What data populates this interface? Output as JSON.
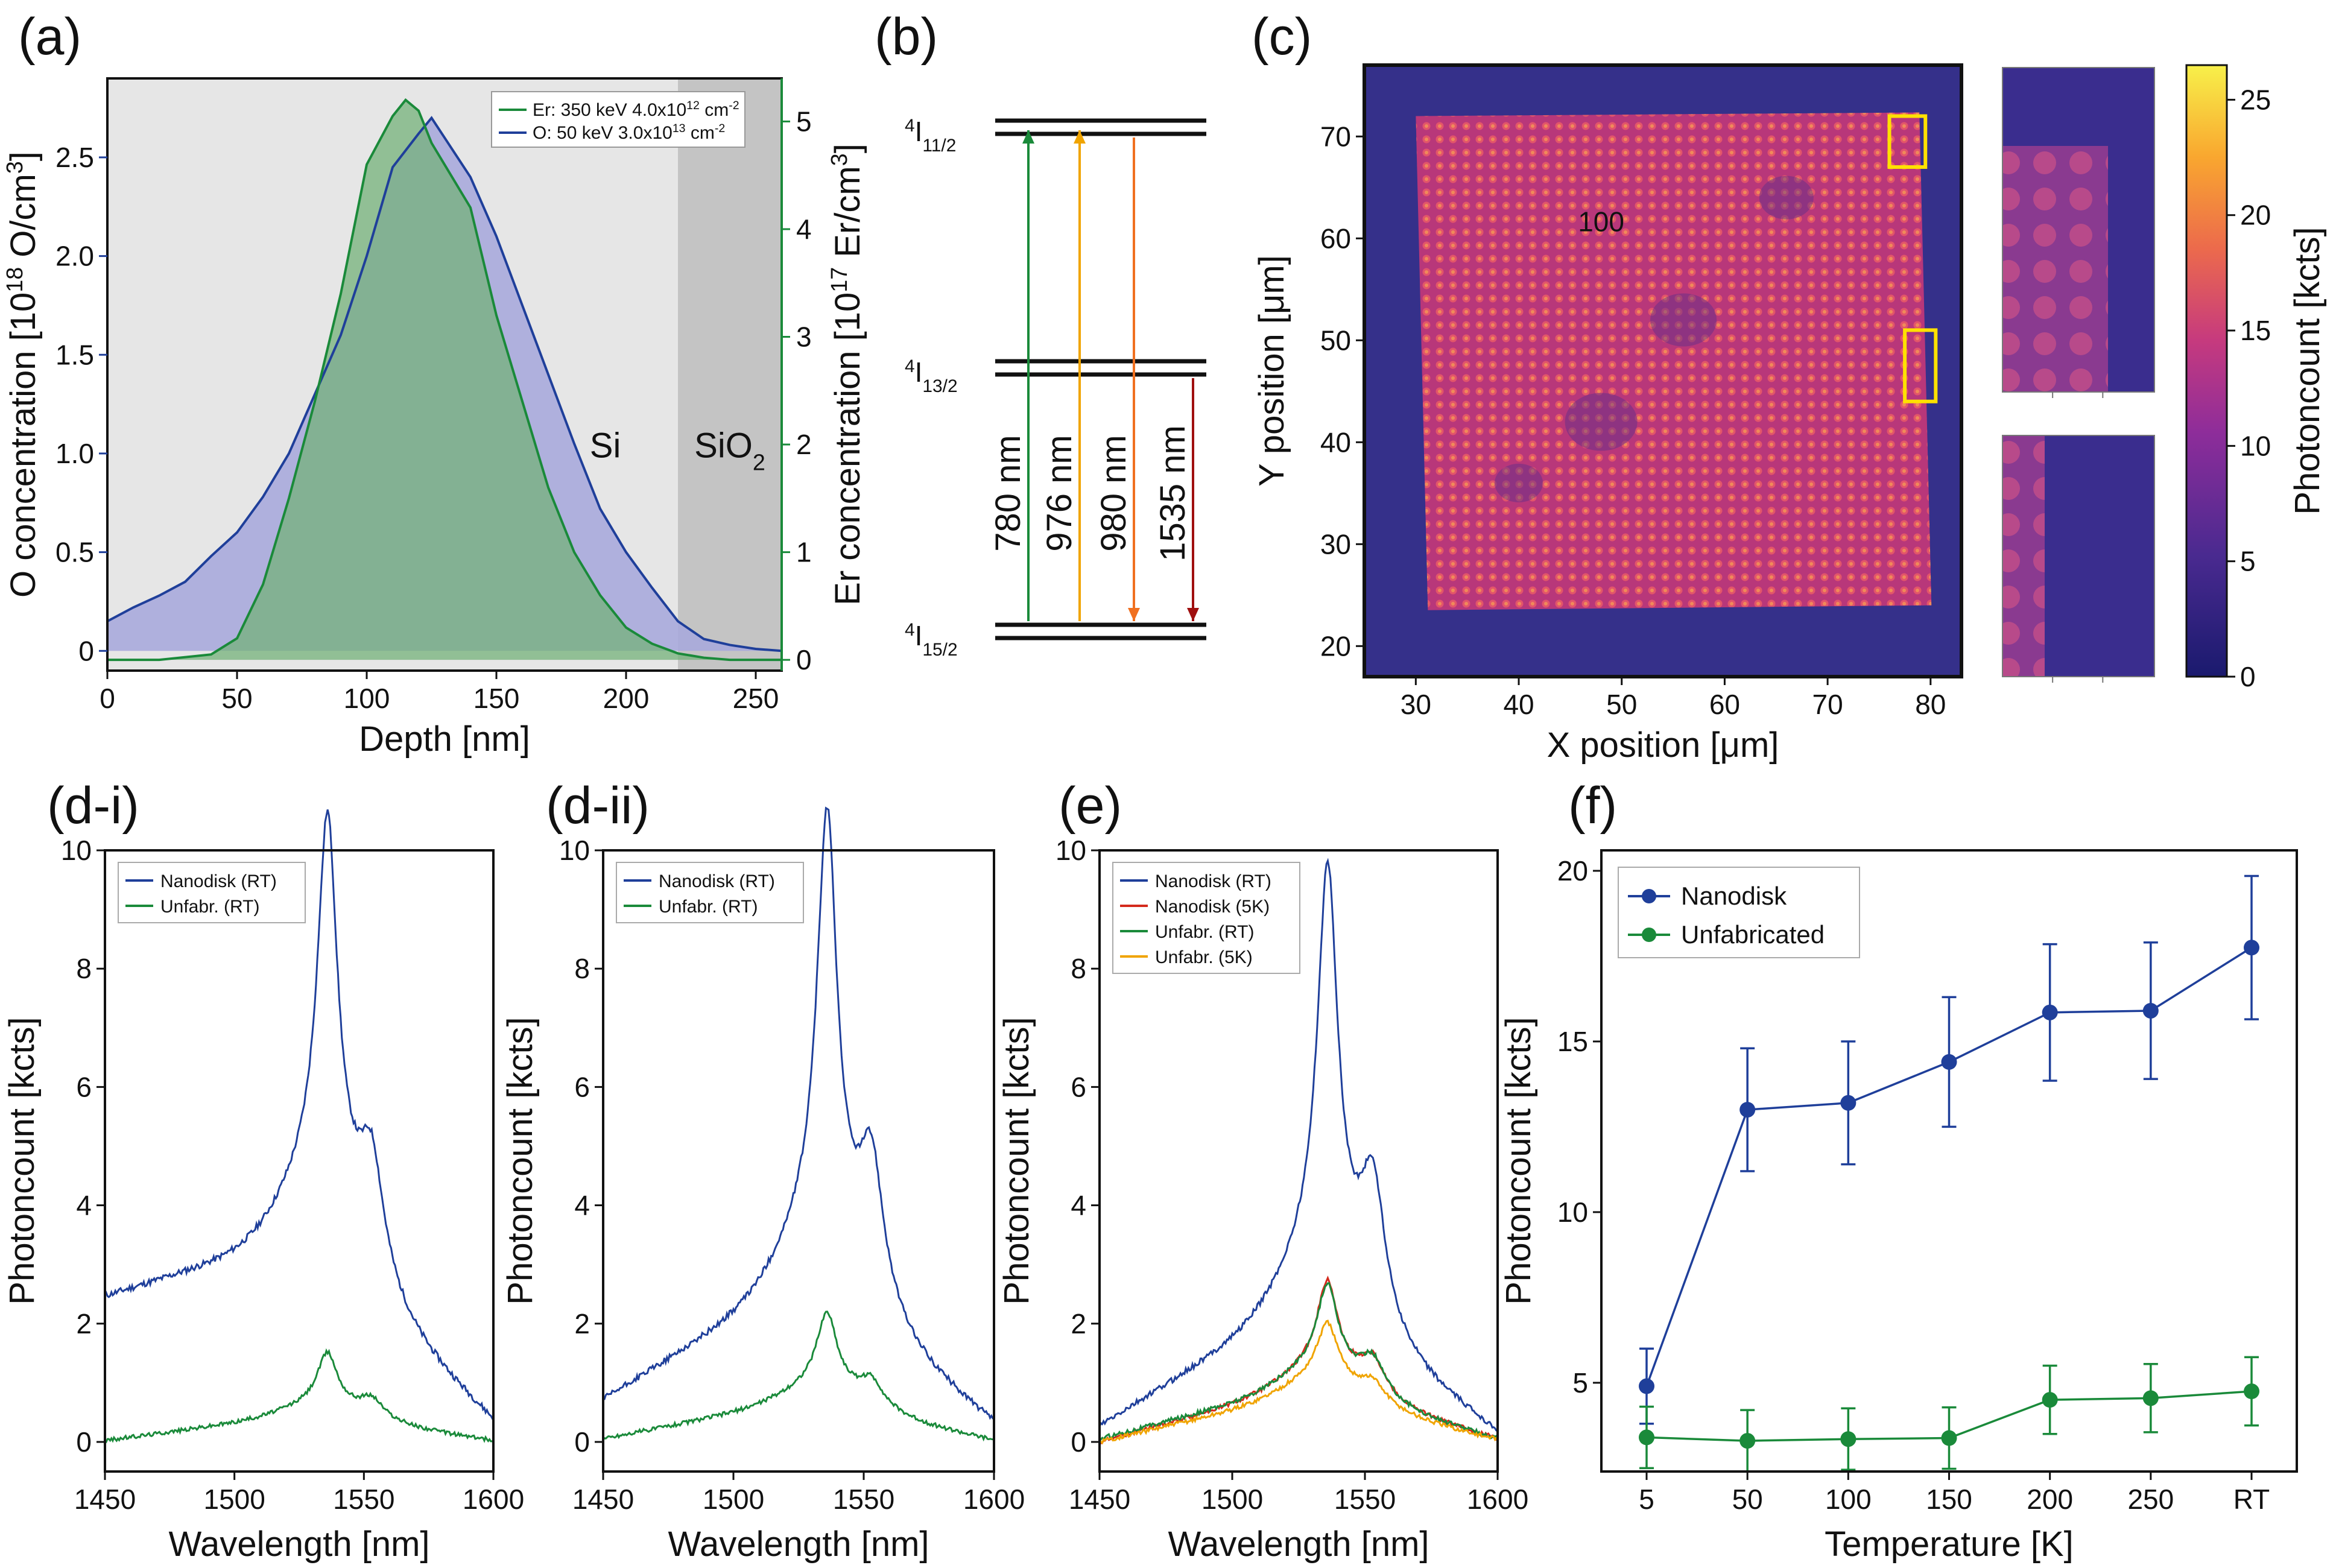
{
  "panels": {
    "a": {
      "label": "(a)"
    },
    "b": {
      "label": "(b)"
    },
    "c": {
      "label": "(c)"
    },
    "di": {
      "label": "(d-i)"
    },
    "dii": {
      "label": "(d-ii)"
    },
    "e": {
      "label": "(e)"
    },
    "f": {
      "label": "(f)"
    }
  },
  "colors": {
    "blue": "#1f3f9a",
    "green": "#1a8a3a",
    "red": "#d42a1c",
    "orange": "#f0a400",
    "darkred": "#a01010",
    "dark_orange": "#f07020",
    "blue_fill": "#a9aadc",
    "green_fill": "#74b27a",
    "si_bg": "#e6e6e6",
    "sio2_bg": "#c4c4c4",
    "yellow": "#ffe100"
  },
  "chart_data": [
    {
      "id": "a",
      "type": "area",
      "xlabel": "Depth [nm]",
      "ylabel_left": "O concentration [10<sup>18</sup> O/cm<sup>3</sup>]",
      "ylabel_right": "Er concentration [10<sup>17</sup> Er/cm<sup>3</sup>]",
      "xlim": [
        0,
        260
      ],
      "ylim_left": [
        -0.1,
        2.9
      ],
      "ylim_right": [
        -0.1,
        5.4
      ],
      "xticks": [
        0,
        50,
        100,
        150,
        200,
        250
      ],
      "yticks_left": [
        0,
        0.5,
        1.0,
        1.5,
        2.0,
        2.5
      ],
      "yticks_right": [
        0,
        1,
        2,
        3,
        4,
        5
      ],
      "region_labels": {
        "si": "Si",
        "sio2": "SiO<sub>2</sub>"
      },
      "sio2_start": 220,
      "legend": [
        {
          "text": "Er: 350 keV 4.0x10<sup>12</sup> cm<sup>-2</sup>",
          "color": "green"
        },
        {
          "text": "O: 50 keV 3.0x10<sup>13</sup> cm<sup>-2</sup>",
          "color": "blue"
        }
      ],
      "series": [
        {
          "name": "O",
          "axis": "left",
          "color": "blue",
          "x": [
            0,
            10,
            20,
            30,
            40,
            50,
            60,
            70,
            80,
            90,
            100,
            110,
            120,
            125,
            130,
            140,
            150,
            160,
            170,
            180,
            190,
            200,
            210,
            220,
            230,
            240,
            250,
            260
          ],
          "y": [
            0.15,
            0.22,
            0.28,
            0.35,
            0.48,
            0.6,
            0.78,
            1.0,
            1.3,
            1.6,
            2.0,
            2.45,
            2.62,
            2.7,
            2.6,
            2.4,
            2.1,
            1.75,
            1.4,
            1.05,
            0.72,
            0.5,
            0.32,
            0.15,
            0.06,
            0.03,
            0.01,
            0.0
          ]
        },
        {
          "name": "Er",
          "axis": "right",
          "color": "green",
          "x": [
            0,
            20,
            40,
            50,
            60,
            70,
            80,
            90,
            100,
            110,
            115,
            120,
            125,
            130,
            140,
            150,
            160,
            170,
            180,
            190,
            200,
            210,
            220,
            230,
            240,
            260
          ],
          "y": [
            0,
            0,
            0.05,
            0.2,
            0.7,
            1.5,
            2.4,
            3.4,
            4.6,
            5.05,
            5.2,
            5.1,
            4.8,
            4.6,
            4.2,
            3.2,
            2.4,
            1.6,
            1.0,
            0.6,
            0.3,
            0.15,
            0.06,
            0.02,
            0.0,
            0.0
          ]
        }
      ]
    },
    {
      "id": "b",
      "type": "diagram",
      "levels": [
        {
          "name": "4I11/2",
          "sup": "4",
          "main": "I",
          "sub": "11/2",
          "frac": 0.06
        },
        {
          "name": "4I13/2",
          "sup": "4",
          "main": "I",
          "sub": "13/2",
          "frac": 0.48
        },
        {
          "name": "4I15/2",
          "sup": "4",
          "main": "I",
          "sub": "15/2",
          "frac": 0.94
        }
      ],
      "transitions": [
        {
          "label": "780 nm",
          "color": "green",
          "from": "4I15/2",
          "to": "4I11/2",
          "dir": "up"
        },
        {
          "label": "976 nm",
          "color": "orange",
          "from": "4I15/2",
          "to": "4I11/2",
          "dir": "up"
        },
        {
          "label": "980 nm",
          "color": "dark_orange",
          "from": "4I11/2",
          "to": "4I15/2",
          "dir": "down"
        },
        {
          "label": "1535 nm",
          "color": "darkred",
          "from": "4I13/2",
          "to": "4I15/2",
          "dir": "down"
        }
      ]
    },
    {
      "id": "c",
      "type": "heatmap",
      "xlabel": "X position [μm]",
      "ylabel": "Y position [μm]",
      "xlim": [
        25,
        83
      ],
      "ylim": [
        17,
        77
      ],
      "xticks": [
        30,
        40,
        50,
        60,
        70,
        80
      ],
      "yticks": [
        20,
        30,
        40,
        50,
        60,
        70
      ],
      "colorbar": {
        "label": "Photoncount [kcts]",
        "min": 0,
        "max": 26.5,
        "ticks": [
          0,
          5,
          10,
          15,
          20,
          25
        ]
      },
      "bright_region": {
        "x": [
          30,
          79.5
        ],
        "y": [
          24,
          72
        ]
      },
      "boxes": [
        {
          "x": [
            76,
            79.5
          ],
          "y": [
            67,
            72
          ]
        },
        {
          "x": [
            77.5,
            80.5
          ],
          "y": [
            44,
            51
          ]
        }
      ],
      "tiny_text": "100"
    },
    {
      "id": "di",
      "type": "line",
      "xlabel": "Wavelength [nm]",
      "ylabel": "Photoncount [kcts]",
      "xlim": [
        1450,
        1600
      ],
      "ylim": [
        -0.5,
        10
      ],
      "xticks": [
        1450,
        1500,
        1550,
        1600
      ],
      "yticks": [
        0,
        2,
        4,
        6,
        8,
        10
      ],
      "series": [
        {
          "name": "Nanodisk (RT)",
          "color": "blue",
          "peak1": 6.0,
          "peak2": 1.75,
          "base_start": 2.45,
          "base_mid": 3.5,
          "base_end": 0.35
        },
        {
          "name": "Unfabr. (RT)",
          "color": "green",
          "peak1": 0.85,
          "peak2": 0.3,
          "base_start": 0.02,
          "base_mid": 0.5,
          "base_end": 0.02
        }
      ]
    },
    {
      "id": "dii",
      "type": "line",
      "xlabel": "Wavelength [nm]",
      "ylabel": "Photoncount [kcts]",
      "xlim": [
        1450,
        1600
      ],
      "ylim": [
        -0.5,
        10
      ],
      "xticks": [
        1450,
        1500,
        1550,
        1600
      ],
      "yticks": [
        0,
        2,
        4,
        6,
        8,
        10
      ],
      "series": [
        {
          "name": "Nanodisk (RT)",
          "color": "blue",
          "peak1": 6.8,
          "peak2": 2.2,
          "base_start": 0.7,
          "base_mid": 2.9,
          "base_end": 0.3
        },
        {
          "name": "Unfabr. (RT)",
          "color": "green",
          "peak1": 1.2,
          "peak2": 0.4,
          "base_start": 0.05,
          "base_mid": 0.75,
          "base_end": 0.02
        }
      ]
    },
    {
      "id": "e",
      "type": "line",
      "xlabel": "Wavelength [nm]",
      "ylabel": "Photoncount [kcts]",
      "xlim": [
        1450,
        1600
      ],
      "ylim": [
        -0.5,
        10
      ],
      "xticks": [
        1450,
        1500,
        1550,
        1600
      ],
      "yticks": [
        0,
        2,
        4,
        6,
        8,
        10
      ],
      "series": [
        {
          "name": "Nanodisk (RT)",
          "color": "blue",
          "peak1": 6.4,
          "peak2": 2.2,
          "base_start": 0.25,
          "base_mid": 2.5,
          "base_end": 0.15
        },
        {
          "name": "Nanodisk (5K)",
          "color": "red",
          "peak1": 1.4,
          "peak2": 0.55,
          "base_start": 0.0,
          "base_mid": 1.0,
          "base_end": 0.05
        },
        {
          "name": "Unfabr. (RT)",
          "color": "green",
          "peak1": 1.35,
          "peak2": 0.55,
          "base_start": 0.05,
          "base_mid": 1.0,
          "base_end": 0.05
        },
        {
          "name": "Unfabr. (5K)",
          "color": "orange",
          "peak1": 0.9,
          "peak2": 0.3,
          "base_start": 0.0,
          "base_mid": 0.85,
          "base_end": 0.03
        }
      ]
    },
    {
      "id": "f",
      "type": "scatter",
      "xlabel": "Temperature [K]",
      "ylabel": "Photoncount [kcts]",
      "ylim": [
        2.4,
        20.6
      ],
      "categories": [
        "5",
        "50",
        "100",
        "150",
        "200",
        "250",
        "RT"
      ],
      "yticks": [
        5,
        10,
        15,
        20
      ],
      "series": [
        {
          "name": "Nanodisk",
          "color": "blue",
          "values": [
            4.9,
            13.0,
            13.2,
            14.4,
            15.85,
            15.9,
            17.75
          ],
          "errors": [
            1.1,
            1.8,
            1.8,
            1.9,
            2.0,
            2.0,
            2.1
          ]
        },
        {
          "name": "Unfabricated",
          "color": "green",
          "values": [
            3.4,
            3.3,
            3.35,
            3.38,
            4.5,
            4.55,
            4.75
          ],
          "errors": [
            0.9,
            0.9,
            0.9,
            0.9,
            1.0,
            1.0,
            1.0
          ]
        }
      ]
    }
  ]
}
